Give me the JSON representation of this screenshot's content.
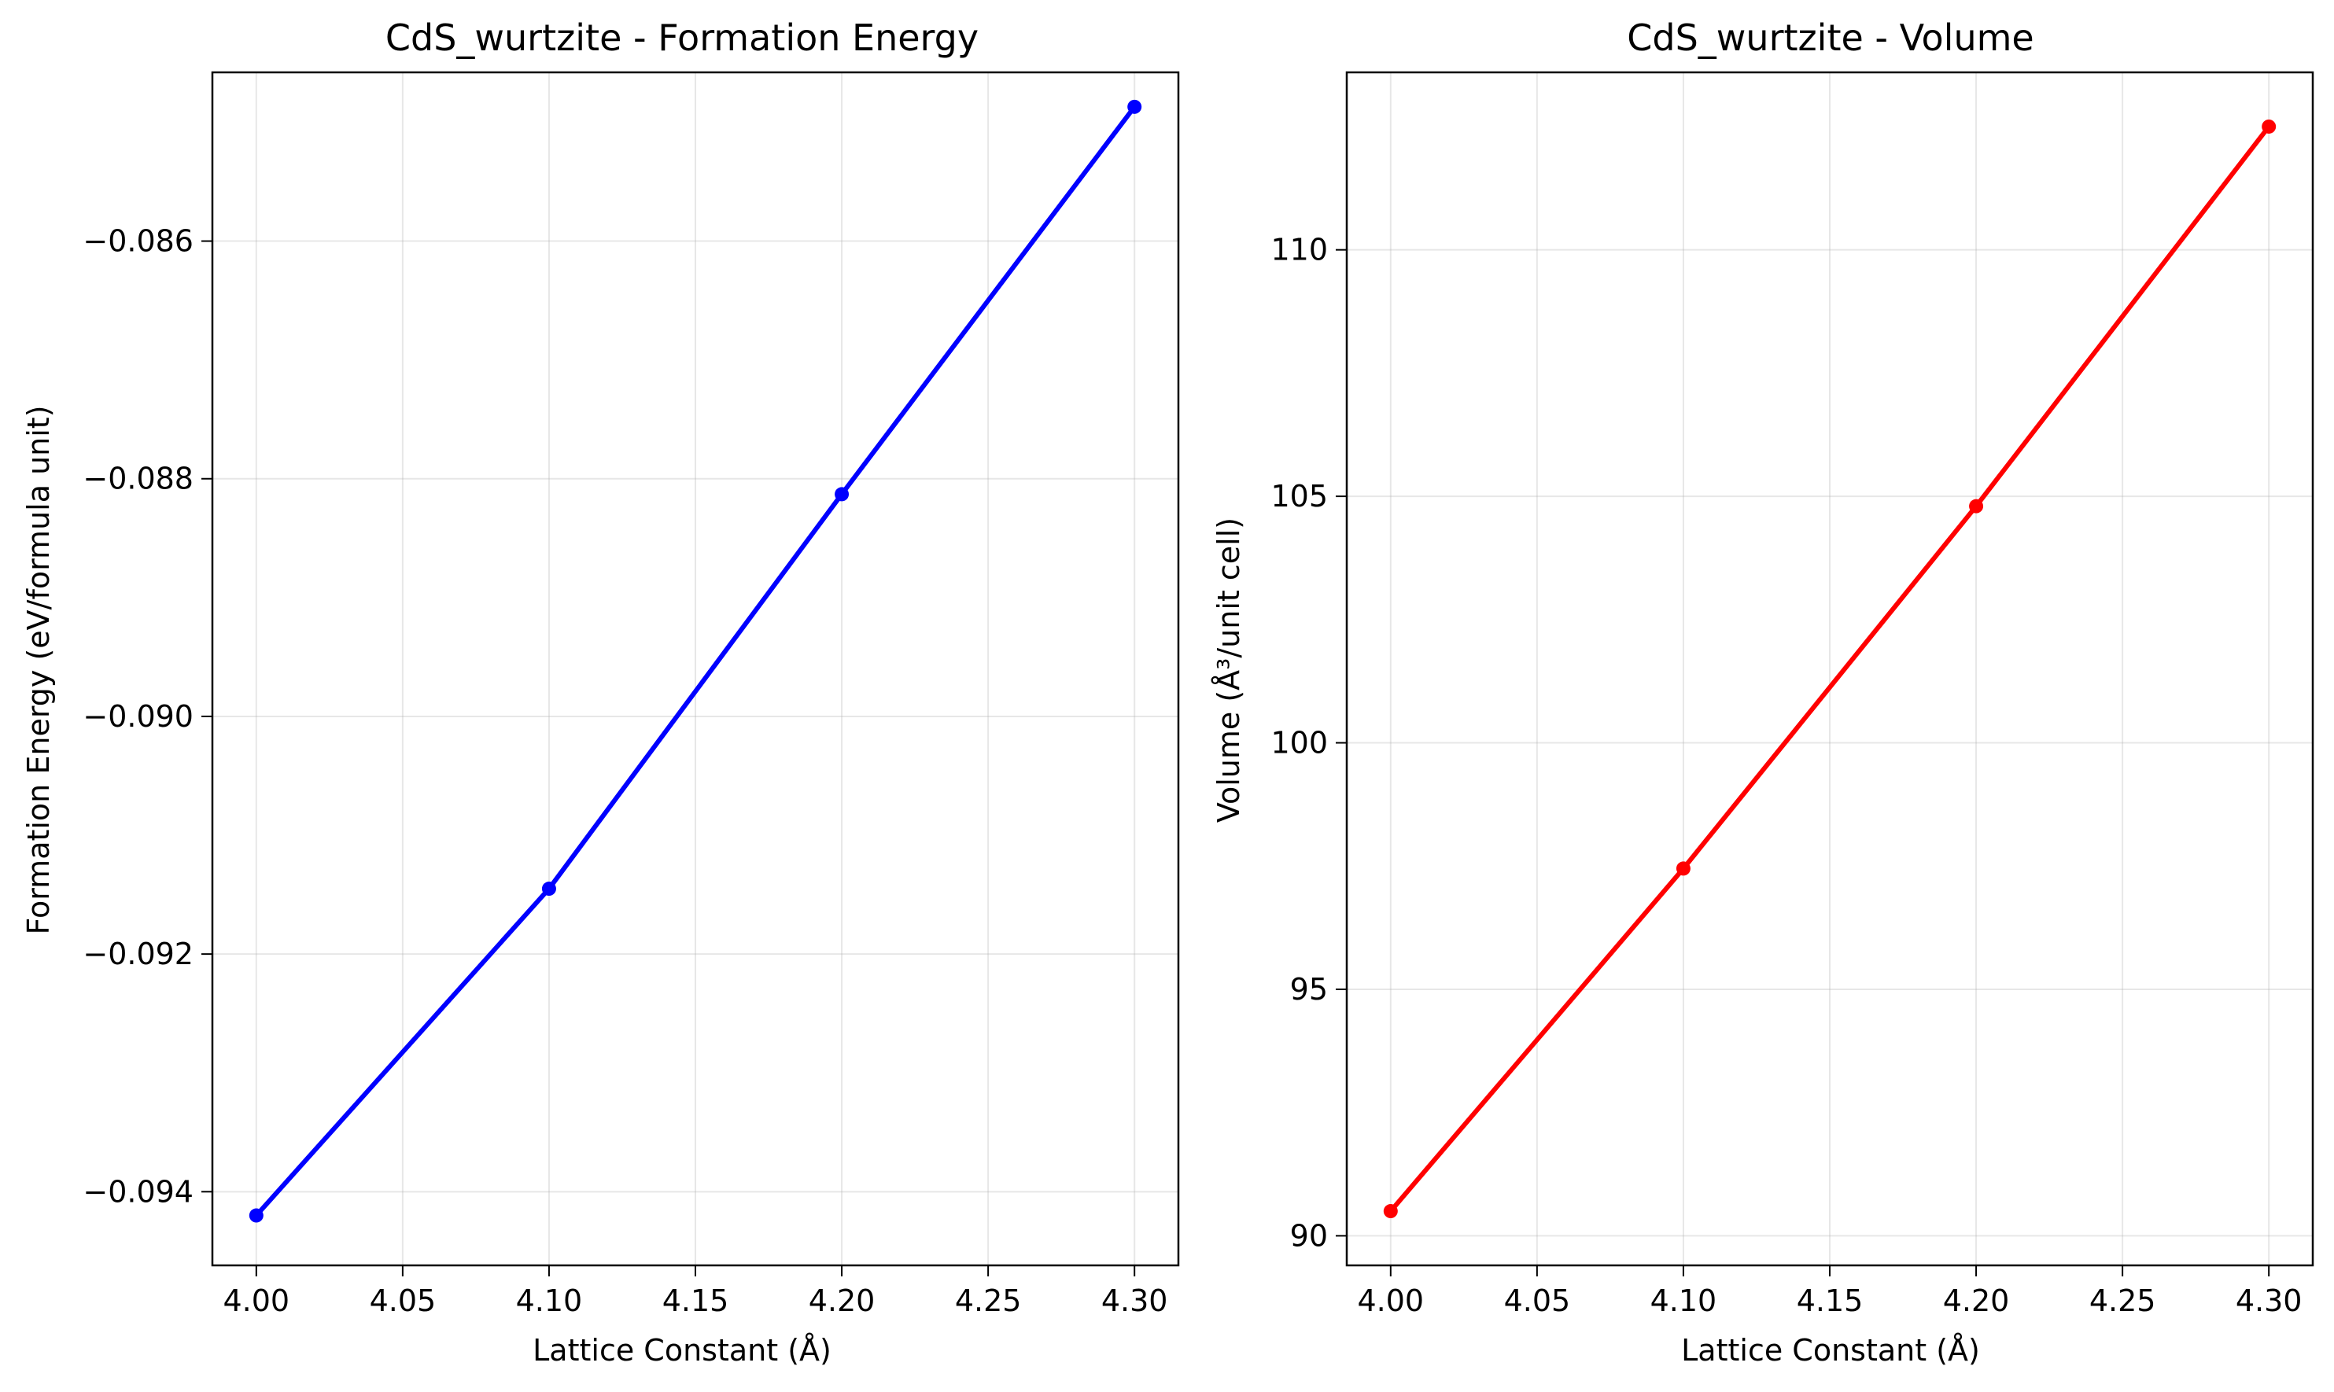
{
  "chart_data": [
    {
      "type": "line",
      "title": "CdS_wurtzite - Formation Energy",
      "xlabel": "Lattice Constant (Å)",
      "ylabel": "Formation Energy (eV/formula unit)",
      "xlim": [
        3.985,
        4.315
      ],
      "ylim": [
        -0.09462,
        -0.08458
      ],
      "xticks": [
        4.0,
        4.05,
        4.1,
        4.15,
        4.2,
        4.25,
        4.3
      ],
      "xtick_labels": [
        "4.00",
        "4.05",
        "4.10",
        "4.15",
        "4.20",
        "4.25",
        "4.30"
      ],
      "yticks": [
        -0.094,
        -0.092,
        -0.09,
        -0.088,
        -0.086
      ],
      "ytick_labels": [
        "−0.094",
        "−0.092",
        "−0.090",
        "−0.088",
        "−0.086"
      ],
      "grid": true,
      "color": "#0000ff",
      "x": [
        4.0,
        4.1,
        4.2,
        4.3
      ],
      "y": [
        -0.0942,
        -0.09145,
        -0.08813,
        -0.08487
      ]
    },
    {
      "type": "line",
      "title": "CdS_wurtzite - Volume",
      "xlabel": "Lattice Constant (Å)",
      "ylabel": "Volume (Å³/unit cell)",
      "xlim": [
        3.985,
        4.315
      ],
      "ylim": [
        89.4,
        113.6
      ],
      "xticks": [
        4.0,
        4.05,
        4.1,
        4.15,
        4.2,
        4.25,
        4.3
      ],
      "xtick_labels": [
        "4.00",
        "4.05",
        "4.10",
        "4.15",
        "4.20",
        "4.25",
        "4.30"
      ],
      "yticks": [
        90,
        95,
        100,
        105,
        110
      ],
      "ytick_labels": [
        "90",
        "95",
        "100",
        "105",
        "110"
      ],
      "grid": true,
      "color": "#ff0000",
      "x": [
        4.0,
        4.1,
        4.2,
        4.3
      ],
      "y": [
        90.5,
        97.45,
        104.8,
        112.5
      ]
    }
  ]
}
